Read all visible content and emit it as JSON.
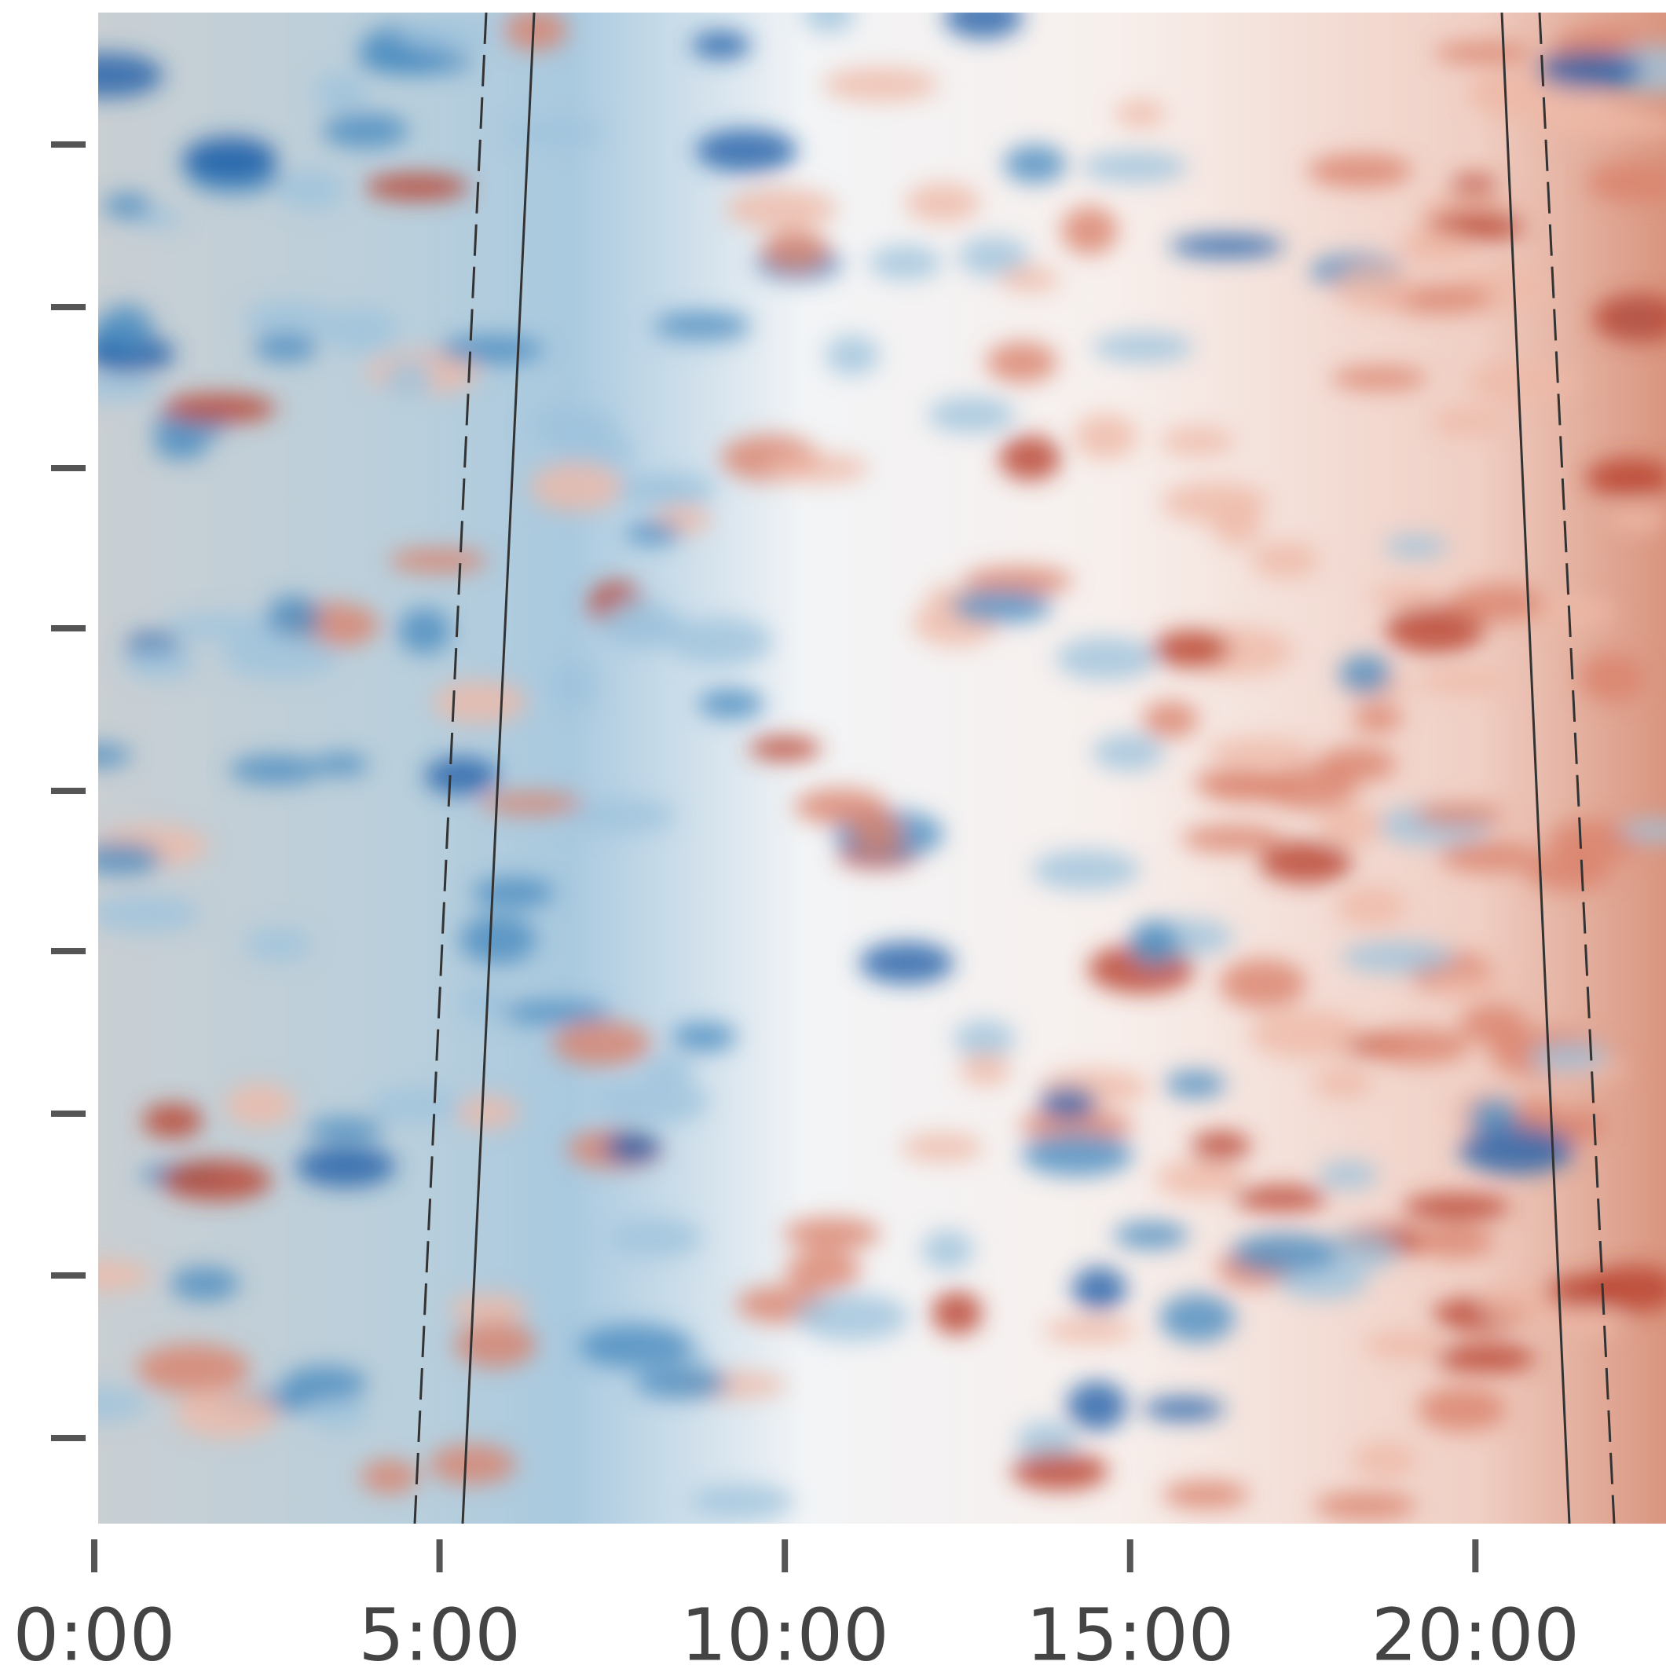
{
  "chart_data": {
    "type": "heatmap",
    "xlim": [
      0.057,
      22.76
    ],
    "xticks": [
      {
        "value": 0,
        "label": "0:00"
      },
      {
        "value": 5,
        "label": "5:00"
      },
      {
        "value": 10,
        "label": "10:00"
      },
      {
        "value": 15,
        "label": "15:00"
      },
      {
        "value": 20,
        "label": "20:00"
      }
    ]
  }
}
